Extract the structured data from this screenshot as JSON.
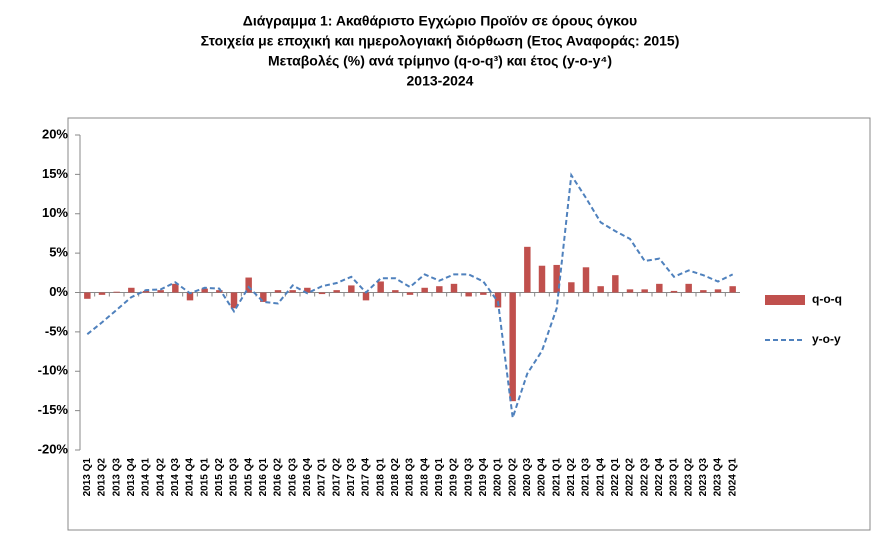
{
  "chart_data": {
    "type": "combo",
    "title": [
      "Διάγραμμα 1: Ακαθάριστο Εγχώριο Προϊόν σε όρους όγκου",
      "Στοιχεία με εποχική και ημερολογιακή διόρθωση (Ετος Αναφοράς: 2015)",
      "Μεταβολές (%) ανά τρίμηνο (q-o-q³) και έτος (y-o-y⁴)",
      "2013-2024"
    ],
    "categories": [
      "2013 Q1",
      "2013 Q2",
      "2013 Q3",
      "2013 Q4",
      "2014 Q1",
      "2014 Q2",
      "2014 Q3",
      "2014 Q4",
      "2015 Q1",
      "2015 Q2",
      "2015 Q3",
      "2015 Q4",
      "2016 Q1",
      "2016 Q2",
      "2016 Q3",
      "2016 Q4",
      "2017 Q1",
      "2017 Q2",
      "2017 Q3",
      "2017 Q4",
      "2018 Q1",
      "2018 Q2",
      "2018 Q3",
      "2018 Q4",
      "2019 Q1",
      "2019 Q2",
      "2019 Q3",
      "2019 Q4",
      "2020 Q1",
      "2020 Q2",
      "2020 Q3",
      "2020 Q4",
      "2021 Q1",
      "2021 Q2",
      "2021 Q3",
      "2021 Q4",
      "2022 Q1",
      "2022 Q2",
      "2022 Q3",
      "2022 Q4",
      "2023 Q1",
      "2023 Q2",
      "2023 Q3",
      "2023 Q4",
      "2024 Q1"
    ],
    "series": [
      {
        "name": "q-o-q",
        "type": "bar",
        "color": "#c0504d",
        "values": [
          -0.8,
          -0.3,
          0.1,
          0.6,
          0.2,
          0.3,
          1.1,
          -1.0,
          0.5,
          0.3,
          -2.0,
          1.9,
          -1.2,
          0.3,
          0.3,
          0.6,
          -0.2,
          0.3,
          0.9,
          -1.0,
          1.4,
          0.3,
          -0.3,
          0.6,
          0.8,
          1.1,
          -0.5,
          -0.3,
          -1.9,
          -13.8,
          5.8,
          3.4,
          3.5,
          1.3,
          3.2,
          0.8,
          2.2,
          0.4,
          0.4,
          1.1,
          0.2,
          1.1,
          0.3,
          0.4,
          0.8
        ]
      },
      {
        "name": "y-o-y",
        "type": "line",
        "color": "#4f81bd",
        "values": [
          -5.3,
          -3.8,
          -2.2,
          -0.6,
          0.3,
          0.4,
          1.3,
          -0.1,
          0.6,
          0.5,
          -2.4,
          0.7,
          -1.2,
          -1.4,
          0.9,
          -0.1,
          0.8,
          1.2,
          2.0,
          0.0,
          1.8,
          1.8,
          0.7,
          2.3,
          1.5,
          2.3,
          2.3,
          1.4,
          -1.2,
          -15.9,
          -10.3,
          -7.4,
          -2.0,
          14.9,
          12.0,
          8.9,
          7.8,
          6.8,
          4.0,
          4.3,
          2.0,
          2.8,
          2.2,
          1.4,
          2.3
        ]
      }
    ],
    "ylim": [
      -20,
      20
    ],
    "yticks": [
      {
        "value": -20,
        "label": "-20%"
      },
      {
        "value": -15,
        "label": "-15%"
      },
      {
        "value": -10,
        "label": "-10%"
      },
      {
        "value": -5,
        "label": "-5%"
      },
      {
        "value": 0,
        "label": "0%"
      },
      {
        "value": 5,
        "label": "5%"
      },
      {
        "value": 10,
        "label": "10%"
      },
      {
        "value": 15,
        "label": "15%"
      },
      {
        "value": 20,
        "label": "20%"
      }
    ],
    "grid": false,
    "legend": "right"
  }
}
